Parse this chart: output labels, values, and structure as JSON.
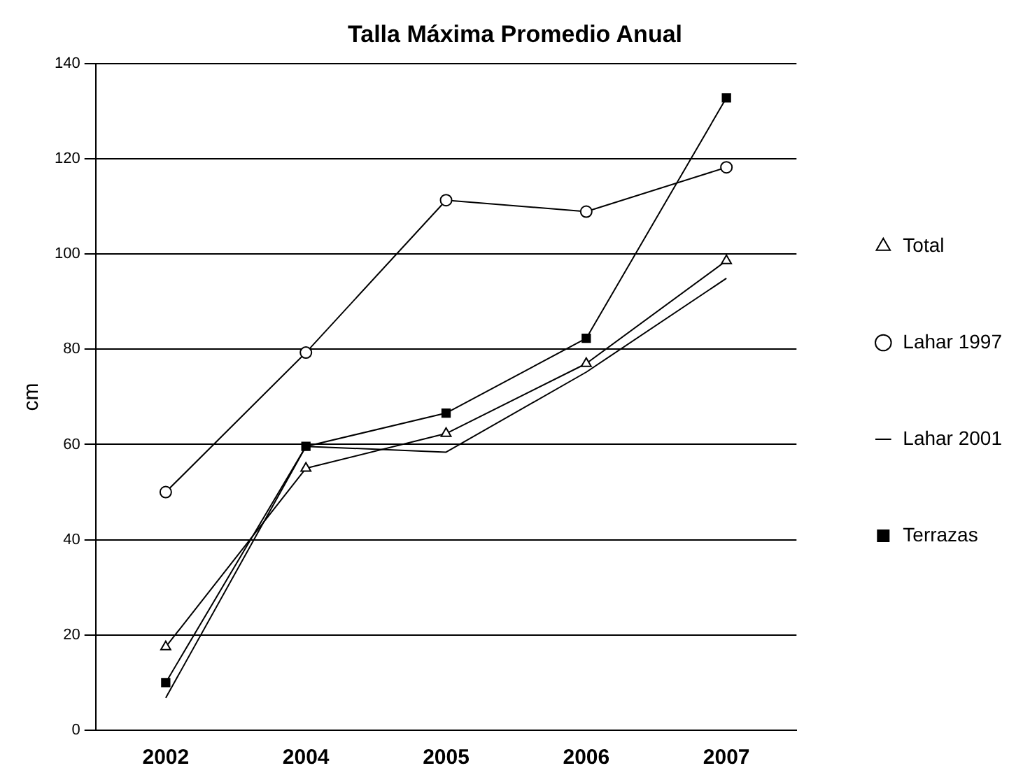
{
  "chart_data": {
    "type": "line",
    "title": "Talla Máxima Promedio Anual",
    "ylabel": "cm",
    "categories": [
      "2002",
      "2004",
      "2005",
      "2006",
      "2007"
    ],
    "series": [
      {
        "name": "Total",
        "color": "#000000",
        "marker": "triangle",
        "values": [
          17.5,
          55,
          62.3,
          77,
          98.6
        ]
      },
      {
        "name": "Lahar 1997",
        "color": "#000000",
        "marker": "circle",
        "values": [
          50,
          79.3,
          111.3,
          108.9,
          118.2
        ]
      },
      {
        "name": "Lahar 2001",
        "color": "#000000",
        "marker": "none",
        "values": [
          6.8,
          59.6,
          58.4,
          75.2,
          94.9
        ]
      },
      {
        "name": "Terrazas",
        "color": "#000000",
        "marker": "square",
        "values": [
          10,
          59.6,
          66.6,
          82.3,
          132.8
        ]
      }
    ],
    "ylim": [
      0,
      140
    ],
    "yticks": [
      0,
      20,
      40,
      60,
      80,
      100,
      120,
      140
    ],
    "grid": "y",
    "legend": "right",
    "line_style": "solid"
  }
}
